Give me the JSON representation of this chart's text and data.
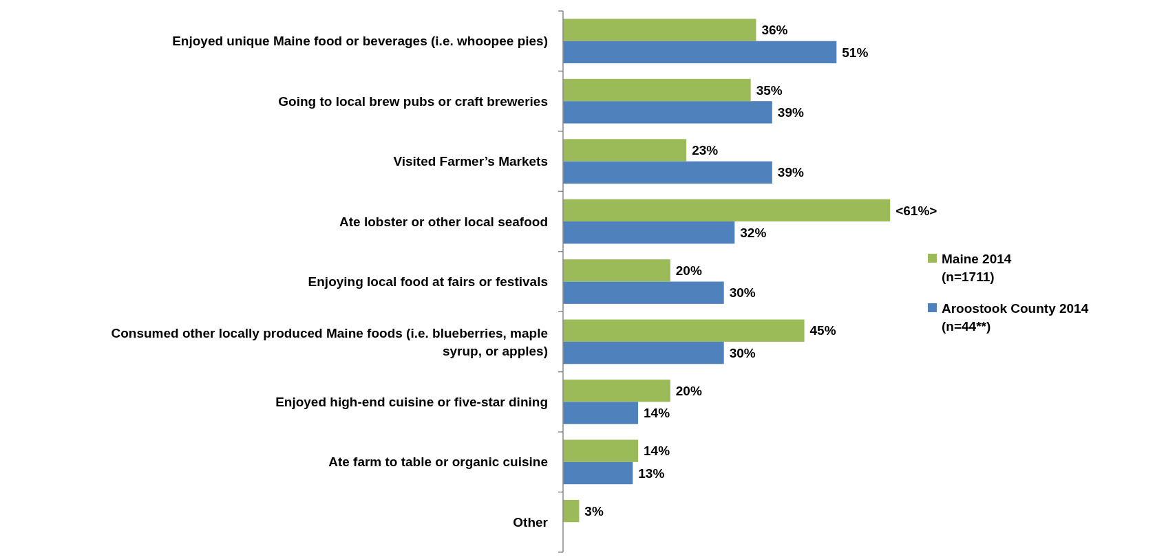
{
  "chart_data": {
    "type": "bar",
    "orientation": "horizontal",
    "categories": [
      "Enjoyed unique Maine food or beverages (i.e. whoopee pies)",
      "Going to local brew pubs or craft breweries",
      "Visited Farmer’s Markets",
      "Ate lobster or other local seafood",
      "Enjoying local food at fairs or festivals",
      "Consumed other locally produced Maine foods (i.e. blueberries, maple syrup, or apples)",
      "Enjoyed high-end cuisine or five-star dining",
      "Ate farm to table or organic cuisine",
      "Other"
    ],
    "series": [
      {
        "name": "Maine 2014 (n=1711)",
        "color": "#9bbb59",
        "values": [
          36,
          35,
          23,
          61,
          20,
          45,
          20,
          14,
          3
        ],
        "value_labels": [
          "36%",
          "35%",
          "23%",
          "<61%>",
          "20%",
          "45%",
          "20%",
          "14%",
          "3%"
        ]
      },
      {
        "name": "Aroostook County 2014 (n=44**)",
        "color": "#4f81bd",
        "values": [
          51,
          39,
          39,
          32,
          30,
          30,
          14,
          13,
          null
        ],
        "value_labels": [
          "51%",
          "39%",
          "39%",
          "32%",
          "30%",
          "30%",
          "14%",
          "13%",
          null
        ]
      }
    ],
    "legend": "right",
    "grid": false
  }
}
